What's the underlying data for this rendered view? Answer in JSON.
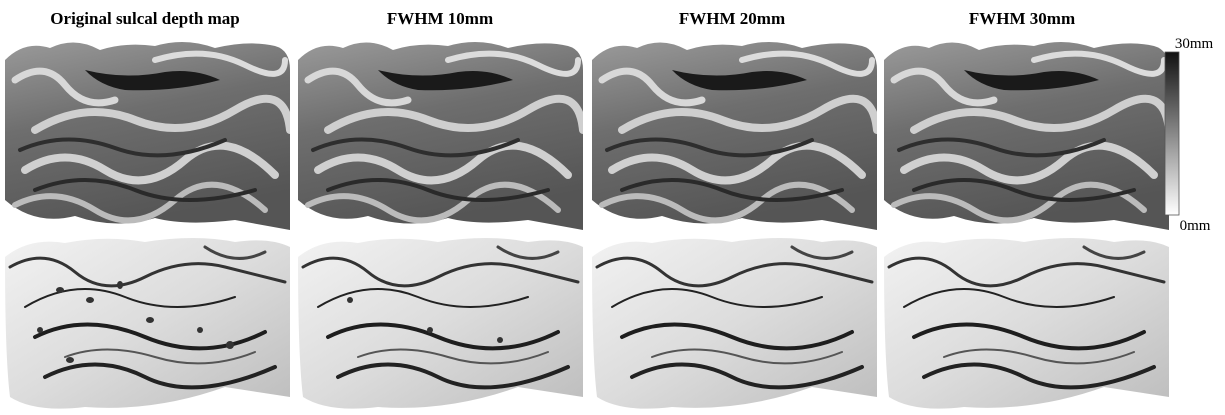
{
  "panels": [
    {
      "title": "Original sulcal depth map"
    },
    {
      "title": "FWHM 10mm"
    },
    {
      "title": "FWHM 20mm"
    },
    {
      "title": "FWHM 30mm"
    }
  ],
  "colorbar": {
    "max_label": "30mm",
    "min_label": "0mm"
  }
}
